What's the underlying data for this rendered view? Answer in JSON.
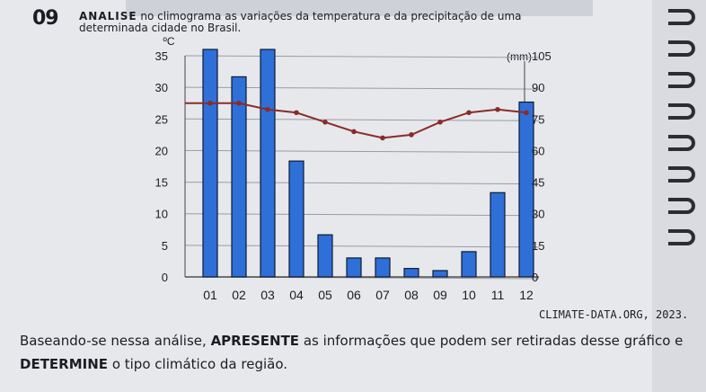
{
  "question": {
    "number": "09",
    "keyword": "ANALISE",
    "line1_rest": " no climograma as variações da temperatura e da precipitação de uma",
    "line2": "determinada cidade no Brasil."
  },
  "source": "CLIMATE-DATA.ORG, 2023.",
  "instruction": {
    "part1": "Baseando-se nessa análise, ",
    "bold1": "APRESENTE",
    "part2": " as informações que podem ser retiradas desse gráfico e ",
    "bold2": "DETERMINE",
    "part3": " o tipo climático da região."
  },
  "chart_data": {
    "type": "bar",
    "categories": [
      "01",
      "02",
      "03",
      "04",
      "05",
      "06",
      "07",
      "08",
      "09",
      "10",
      "11",
      "12"
    ],
    "series": [
      {
        "kind": "bar",
        "axis": "right",
        "color": "#2f6fd8",
        "values": [
          108,
          95,
          108,
          55,
          20,
          9,
          9,
          4,
          3,
          12,
          40,
          83
        ]
      },
      {
        "kind": "line",
        "axis": "left",
        "color": "#8a2b2b",
        "values": [
          27.5,
          27.5,
          26.5,
          26,
          24.5,
          23,
          22,
          22.5,
          24.5,
          26,
          26.5,
          26
        ]
      }
    ],
    "left_axis": {
      "unit": "ºC",
      "ticks": [
        0,
        5,
        10,
        15,
        20,
        25,
        30,
        35
      ],
      "range": [
        0,
        35
      ]
    },
    "right_axis": {
      "unit": "(mm)",
      "ticks": [
        0,
        15,
        30,
        45,
        60,
        75,
        90,
        105
      ],
      "range": [
        0,
        105
      ]
    },
    "grid": true
  }
}
